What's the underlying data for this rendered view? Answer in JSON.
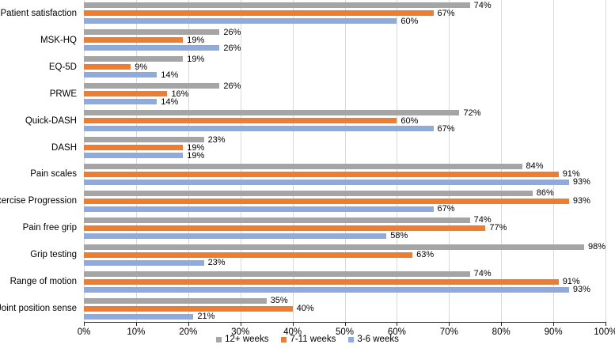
{
  "chart_data": {
    "type": "bar",
    "orientation": "horizontal",
    "title": "",
    "xlabel": "",
    "ylabel": "",
    "value_suffix": "%",
    "grid": true,
    "legend_position": "bottom",
    "categories": [
      "Patient satisfaction",
      "MSK-HQ",
      "EQ-5D",
      "PRWE",
      "Quick-DASH",
      "DASH",
      "Pain scales",
      "Exercise Progression",
      "Pain free grip",
      "Grip testing",
      "Range of motion",
      "Joint position sense"
    ],
    "series": [
      {
        "name": "12+ weeks",
        "color": "#a5a5a5",
        "values": [
          74,
          26,
          19,
          26,
          72,
          23,
          84,
          86,
          74,
          98,
          74,
          35
        ]
      },
      {
        "name": "7-11 weeks",
        "color": "#ed7d31",
        "values": [
          67,
          19,
          9,
          16,
          60,
          19,
          91,
          93,
          77,
          63,
          91,
          40
        ]
      },
      {
        "name": "3-6 weeks",
        "color": "#8faadc",
        "values": [
          60,
          26,
          14,
          14,
          67,
          19,
          93,
          67,
          58,
          23,
          93,
          21
        ]
      }
    ],
    "x_axis": {
      "min": 0,
      "max": 100,
      "tick_labels": [
        "0%",
        "10%",
        "20%",
        "30%",
        "40%",
        "50%",
        "60%",
        "70%",
        "80%",
        "90%",
        "100%"
      ]
    },
    "colors": {
      "gridline": "#d9d9d9",
      "axis_line": "#262626",
      "text": "#000000",
      "background": "#ffffff"
    }
  }
}
